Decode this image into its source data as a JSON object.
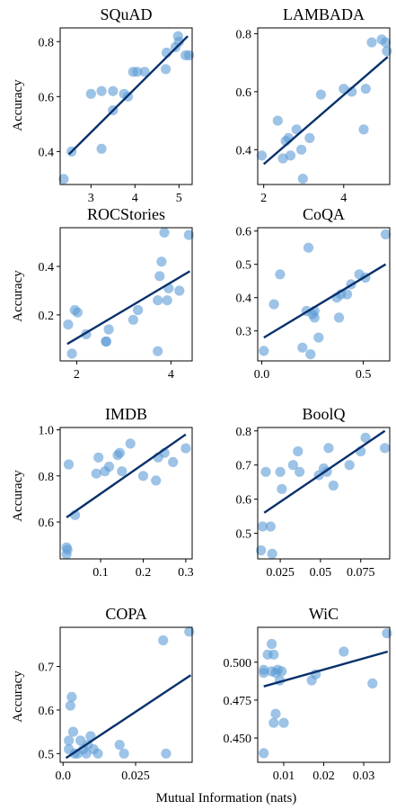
{
  "figure": {
    "xlabel": "Mutual Information (nats)",
    "ylabel": "Accuracy",
    "point_color": "#5b9bd5",
    "line_color": "#08306b"
  },
  "chart_data": [
    {
      "type": "scatter",
      "title": "SQuAD",
      "xlim": [
        2.3,
        5.3
      ],
      "ylim": [
        0.28,
        0.85
      ],
      "xticks": [
        3,
        4,
        5
      ],
      "yticks": [
        0.4,
        0.6,
        0.8
      ],
      "ytick_labels": [
        "0.4",
        "0.6",
        "0.8"
      ],
      "points": [
        [
          2.38,
          0.3
        ],
        [
          2.56,
          0.4
        ],
        [
          3.0,
          0.61
        ],
        [
          3.24,
          0.62
        ],
        [
          3.24,
          0.41
        ],
        [
          3.5,
          0.55
        ],
        [
          3.5,
          0.62
        ],
        [
          3.75,
          0.61
        ],
        [
          3.84,
          0.6
        ],
        [
          3.96,
          0.69
        ],
        [
          4.05,
          0.69
        ],
        [
          4.22,
          0.69
        ],
        [
          4.7,
          0.7
        ],
        [
          4.72,
          0.76
        ],
        [
          4.92,
          0.78
        ],
        [
          4.98,
          0.82
        ],
        [
          5.0,
          0.8
        ],
        [
          5.15,
          0.75
        ],
        [
          5.23,
          0.75
        ]
      ],
      "fit": [
        [
          2.5,
          0.39
        ],
        [
          5.2,
          0.82
        ]
      ]
    },
    {
      "type": "scatter",
      "title": "LAMBADA",
      "xlim": [
        1.85,
        5.15
      ],
      "ylim": [
        0.28,
        0.82
      ],
      "xticks": [
        2,
        4
      ],
      "yticks": [
        0.4,
        0.6,
        0.8
      ],
      "ytick_labels": [
        "0.4",
        "0.6",
        "0.8"
      ],
      "points": [
        [
          1.95,
          0.38
        ],
        [
          2.35,
          0.5
        ],
        [
          2.48,
          0.37
        ],
        [
          2.55,
          0.43
        ],
        [
          2.62,
          0.44
        ],
        [
          2.67,
          0.38
        ],
        [
          2.82,
          0.47
        ],
        [
          2.94,
          0.4
        ],
        [
          2.98,
          0.3
        ],
        [
          3.15,
          0.44
        ],
        [
          3.43,
          0.59
        ],
        [
          4.0,
          0.61
        ],
        [
          4.2,
          0.6
        ],
        [
          4.5,
          0.47
        ],
        [
          4.55,
          0.61
        ],
        [
          4.7,
          0.77
        ],
        [
          4.95,
          0.78
        ],
        [
          5.05,
          0.77
        ],
        [
          5.08,
          0.74
        ]
      ],
      "fit": [
        [
          2.0,
          0.35
        ],
        [
          5.1,
          0.72
        ]
      ]
    },
    {
      "type": "scatter",
      "title": "ROCStories",
      "xlim": [
        1.65,
        4.45
      ],
      "ylim": [
        0.01,
        0.56
      ],
      "xticks": [
        2,
        4
      ],
      "yticks": [
        0.2,
        0.4
      ],
      "ytick_labels": [
        "0.2",
        "0.4"
      ],
      "points": [
        [
          1.82,
          0.16
        ],
        [
          1.9,
          0.04
        ],
        [
          1.96,
          0.22
        ],
        [
          2.02,
          0.21
        ],
        [
          2.2,
          0.12
        ],
        [
          2.62,
          0.09
        ],
        [
          2.63,
          0.09
        ],
        [
          2.68,
          0.14
        ],
        [
          3.2,
          0.18
        ],
        [
          3.3,
          0.22
        ],
        [
          3.72,
          0.05
        ],
        [
          3.72,
          0.26
        ],
        [
          3.76,
          0.36
        ],
        [
          3.8,
          0.42
        ],
        [
          3.86,
          0.54
        ],
        [
          3.92,
          0.26
        ],
        [
          3.95,
          0.31
        ],
        [
          4.18,
          0.3
        ],
        [
          4.38,
          0.53
        ]
      ],
      "fit": [
        [
          1.8,
          0.08
        ],
        [
          4.4,
          0.38
        ]
      ]
    },
    {
      "type": "scatter",
      "title": "CoQA",
      "xlim": [
        -0.02,
        0.63
      ],
      "ylim": [
        0.21,
        0.61
      ],
      "xticks": [
        0.0,
        0.5
      ],
      "yticks": [
        0.3,
        0.4,
        0.5,
        0.6
      ],
      "ytick_labels": [
        "0.3",
        "0.4",
        "0.5",
        "0.6"
      ],
      "points": [
        [
          0.01,
          0.24
        ],
        [
          0.06,
          0.38
        ],
        [
          0.09,
          0.47
        ],
        [
          0.2,
          0.25
        ],
        [
          0.22,
          0.36
        ],
        [
          0.23,
          0.55
        ],
        [
          0.24,
          0.23
        ],
        [
          0.25,
          0.35
        ],
        [
          0.26,
          0.36
        ],
        [
          0.26,
          0.34
        ],
        [
          0.28,
          0.28
        ],
        [
          0.37,
          0.4
        ],
        [
          0.38,
          0.34
        ],
        [
          0.39,
          0.41
        ],
        [
          0.42,
          0.41
        ],
        [
          0.44,
          0.44
        ],
        [
          0.48,
          0.47
        ],
        [
          0.51,
          0.46
        ],
        [
          0.61,
          0.59
        ]
      ],
      "fit": [
        [
          0.01,
          0.28
        ],
        [
          0.61,
          0.5
        ]
      ]
    },
    {
      "type": "scatter",
      "title": "IMDB",
      "xlim": [
        0.005,
        0.315
      ],
      "ylim": [
        0.44,
        1.01
      ],
      "xticks": [
        0.1,
        0.2,
        0.3
      ],
      "yticks": [
        0.6,
        0.8,
        1.0
      ],
      "ytick_labels": [
        "0.6",
        "0.8",
        "1.0"
      ],
      "points": [
        [
          0.02,
          0.46
        ],
        [
          0.02,
          0.49
        ],
        [
          0.022,
          0.48
        ],
        [
          0.025,
          0.85
        ],
        [
          0.04,
          0.63
        ],
        [
          0.09,
          0.81
        ],
        [
          0.095,
          0.88
        ],
        [
          0.11,
          0.82
        ],
        [
          0.12,
          0.84
        ],
        [
          0.14,
          0.89
        ],
        [
          0.145,
          0.9
        ],
        [
          0.15,
          0.82
        ],
        [
          0.17,
          0.94
        ],
        [
          0.2,
          0.8
        ],
        [
          0.23,
          0.78
        ],
        [
          0.235,
          0.88
        ],
        [
          0.25,
          0.9
        ],
        [
          0.27,
          0.86
        ],
        [
          0.3,
          0.92
        ]
      ],
      "fit": [
        [
          0.02,
          0.62
        ],
        [
          0.3,
          0.98
        ]
      ]
    },
    {
      "type": "scatter",
      "title": "BoolQ",
      "xlim": [
        0.011,
        0.093
      ],
      "ylim": [
        0.425,
        0.81
      ],
      "xticks": [
        0.025,
        0.05,
        0.075
      ],
      "yticks": [
        0.5,
        0.6,
        0.7,
        0.8
      ],
      "ytick_labels": [
        "0.5",
        "0.6",
        "0.7",
        "0.8"
      ],
      "points": [
        [
          0.013,
          0.45
        ],
        [
          0.014,
          0.52
        ],
        [
          0.016,
          0.68
        ],
        [
          0.019,
          0.52
        ],
        [
          0.02,
          0.44
        ],
        [
          0.025,
          0.68
        ],
        [
          0.026,
          0.63
        ],
        [
          0.033,
          0.7
        ],
        [
          0.036,
          0.74
        ],
        [
          0.037,
          0.68
        ],
        [
          0.049,
          0.67
        ],
        [
          0.052,
          0.69
        ],
        [
          0.054,
          0.68
        ],
        [
          0.055,
          0.75
        ],
        [
          0.058,
          0.64
        ],
        [
          0.068,
          0.7
        ],
        [
          0.075,
          0.74
        ],
        [
          0.078,
          0.78
        ],
        [
          0.09,
          0.75
        ]
      ],
      "fit": [
        [
          0.015,
          0.56
        ],
        [
          0.09,
          0.8
        ]
      ]
    },
    {
      "type": "scatter",
      "title": "COPA",
      "xlim": [
        -0.001,
        0.0445
      ],
      "ylim": [
        0.48,
        0.79
      ],
      "xticks": [
        0.0,
        0.025
      ],
      "yticks": [
        0.5,
        0.6,
        0.7
      ],
      "ytick_labels": [
        "0.5",
        "0.6",
        "0.7"
      ],
      "points": [
        [
          0.002,
          0.53
        ],
        [
          0.002,
          0.51
        ],
        [
          0.0025,
          0.61
        ],
        [
          0.003,
          0.63
        ],
        [
          0.0035,
          0.55
        ],
        [
          0.004,
          0.5
        ],
        [
          0.005,
          0.5
        ],
        [
          0.006,
          0.53
        ],
        [
          0.007,
          0.51
        ],
        [
          0.008,
          0.5
        ],
        [
          0.0085,
          0.52
        ],
        [
          0.0095,
          0.54
        ],
        [
          0.0105,
          0.51
        ],
        [
          0.012,
          0.5
        ],
        [
          0.0195,
          0.52
        ],
        [
          0.021,
          0.5
        ],
        [
          0.0345,
          0.76
        ],
        [
          0.0355,
          0.5
        ],
        [
          0.0435,
          0.78
        ]
      ],
      "fit": [
        [
          0.001,
          0.49
        ],
        [
          0.044,
          0.68
        ]
      ]
    },
    {
      "type": "scatter",
      "title": "WiC",
      "xlim": [
        0.0035,
        0.0365
      ],
      "ylim": [
        0.434,
        0.523
      ],
      "xticks": [
        0.01,
        0.02,
        0.03
      ],
      "yticks": [
        0.45,
        0.475,
        0.5
      ],
      "ytick_labels": [
        "0.450",
        "0.475",
        "0.500"
      ],
      "points": [
        [
          0.005,
          0.44
        ],
        [
          0.005,
          0.493
        ],
        [
          0.005,
          0.495
        ],
        [
          0.006,
          0.505
        ],
        [
          0.007,
          0.512
        ],
        [
          0.007,
          0.494
        ],
        [
          0.0075,
          0.46
        ],
        [
          0.0075,
          0.505
        ],
        [
          0.008,
          0.466
        ],
        [
          0.008,
          0.493
        ],
        [
          0.0085,
          0.495
        ],
        [
          0.009,
          0.488
        ],
        [
          0.0095,
          0.494
        ],
        [
          0.01,
          0.46
        ],
        [
          0.017,
          0.488
        ],
        [
          0.018,
          0.492
        ],
        [
          0.025,
          0.507
        ],
        [
          0.0322,
          0.486
        ],
        [
          0.0358,
          0.519
        ]
      ],
      "fit": [
        [
          0.005,
          0.484
        ],
        [
          0.036,
          0.507
        ]
      ]
    }
  ]
}
